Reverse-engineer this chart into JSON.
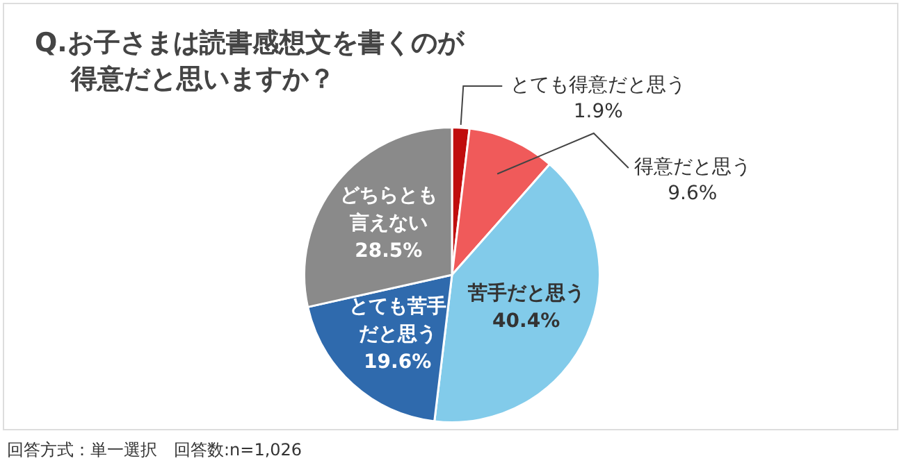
{
  "chart_data": {
    "type": "pie",
    "title": "Q.お子さまは読書感想文を書くのが得意だと思いますか？",
    "categories": [
      "とても得意だと思う",
      "得意だと思う",
      "苦手だと思う",
      "とても苦手だと思う",
      "どちらとも言えない"
    ],
    "values": [
      1.9,
      9.6,
      40.4,
      19.6,
      28.5
    ],
    "value_labels": [
      "1.9%",
      "9.6%",
      "40.4%",
      "19.6%",
      "28.5%"
    ],
    "colors": [
      "#c00d0d",
      "#f05a5a",
      "#82cbea",
      "#2f6aad",
      "#8a8a8a"
    ],
    "annotations": [
      "回答方式：単一選択　回答数:n=1,026"
    ]
  }
}
